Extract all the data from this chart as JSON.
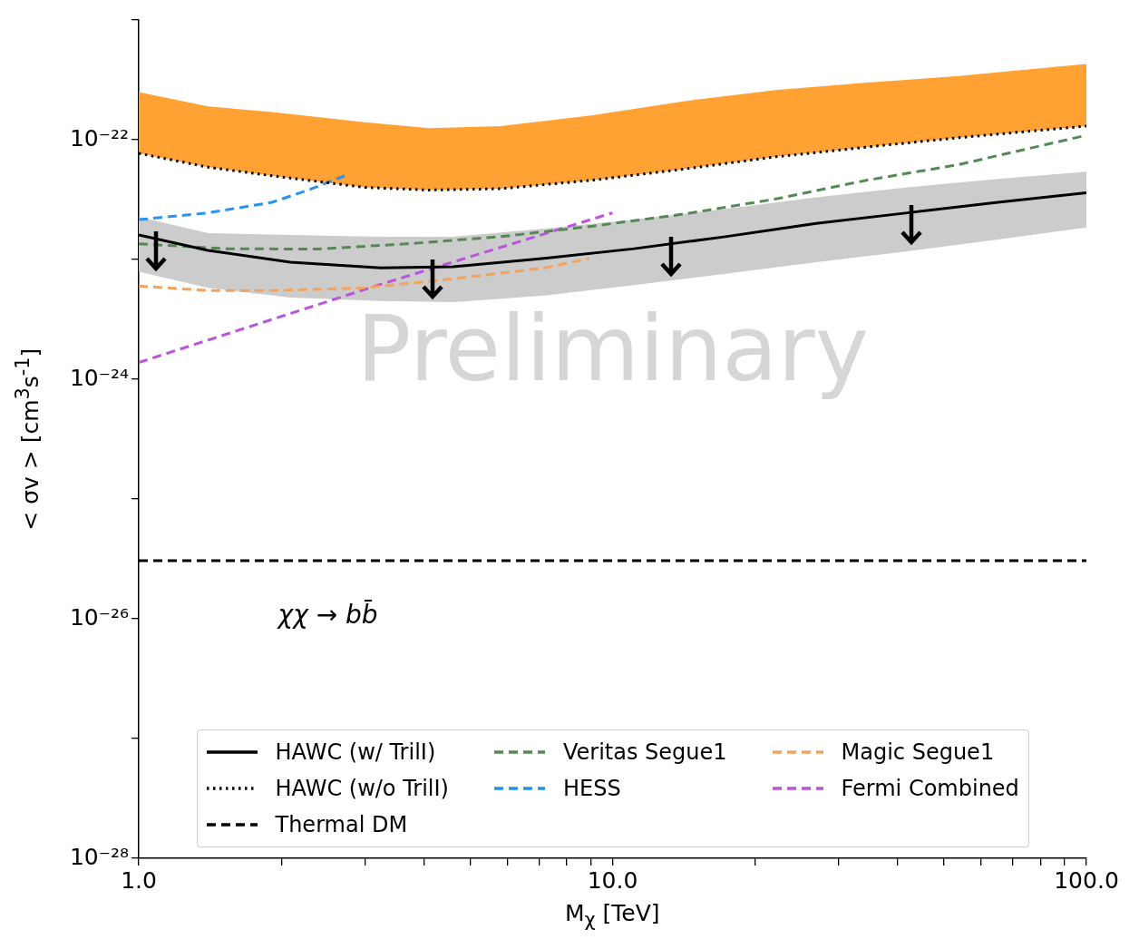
{
  "chart_data": {
    "type": "line",
    "xlabel": "M$_{χ}$ [TeV]",
    "ylabel": "< σv >  [cm$^{3}$s$^{-1}$]",
    "log": "xy",
    "grid": false,
    "legend": "bottom",
    "xlim": [
      1,
      100
    ],
    "ylim": [
      1e-28,
      1e-21
    ],
    "xticks": [
      {
        "value": 1,
        "label": "1.0"
      },
      {
        "value": 2,
        "label": null
      },
      {
        "value": 3,
        "label": null
      },
      {
        "value": 4,
        "label": null
      },
      {
        "value": 5,
        "label": null
      },
      {
        "value": 6,
        "label": null
      },
      {
        "value": 7,
        "label": null
      },
      {
        "value": 8,
        "label": null
      },
      {
        "value": 9,
        "label": null
      },
      {
        "value": 10,
        "label": "10.0"
      },
      {
        "value": 20,
        "label": null
      },
      {
        "value": 30,
        "label": null
      },
      {
        "value": 40,
        "label": null
      },
      {
        "value": 50,
        "label": null
      },
      {
        "value": 60,
        "label": null
      },
      {
        "value": 70,
        "label": null
      },
      {
        "value": 80,
        "label": null
      },
      {
        "value": 90,
        "label": null
      },
      {
        "value": 100,
        "label": "100.0"
      }
    ],
    "yticks": [
      {
        "value": 1e-28,
        "label": "10⁻²⁸"
      },
      {
        "value": 1e-27,
        "label": null
      },
      {
        "value": 1e-26,
        "label": "10⁻²⁶"
      },
      {
        "value": 1e-25,
        "label": null
      },
      {
        "value": 1e-24,
        "label": "10⁻²⁴"
      },
      {
        "value": 1e-23,
        "label": null
      },
      {
        "value": 1e-22,
        "label": "10⁻²²"
      },
      {
        "value": 1e-21,
        "label": null
      }
    ],
    "annotations": [
      "χχ → bb̄",
      "Preliminary"
    ],
    "series": [
      {
        "name": "HAWC (w/ TrilI)",
        "color": "#000000",
        "line_style": "solid",
        "x": [
          1,
          1.4,
          2.09,
          3.24,
          4.61,
          7.18,
          11.1,
          17.3,
          26.9,
          41.9,
          65,
          100
        ],
        "values": [
          1.6e-23,
          1.19e-23,
          9.5e-24,
          8.5e-24,
          8.7e-24,
          1.02e-23,
          1.23e-23,
          1.55e-23,
          2e-23,
          2.45e-23,
          3e-23,
          3.6e-23
        ],
        "lower": [
          7.9e-24,
          5.8e-24,
          4.8e-24,
          4.5e-24,
          4.4e-24,
          5e-24,
          6.1e-24,
          7.6e-24,
          9.5e-24,
          1.17e-23,
          1.47e-23,
          1.85e-23
        ],
        "upper": [
          2.27e-23,
          1.66e-23,
          1.6e-23,
          1.55e-23,
          1.55e-23,
          1.81e-23,
          2.15e-23,
          2.65e-23,
          3.3e-23,
          4e-23,
          4.7e-23,
          5.4e-23
        ]
      },
      {
        "name": "Veritas Segue1",
        "color": "#558855",
        "line_style": "dashed",
        "x": [
          1,
          1.53,
          2.37,
          3.67,
          5.8,
          9.1,
          14.2,
          22.1,
          34.5,
          53.8,
          100
        ],
        "values": [
          1.35e-23,
          1.23e-23,
          1.22e-23,
          1.35e-23,
          1.55e-23,
          1.9e-23,
          2.4e-23,
          3.2e-23,
          4.6e-23,
          6.2e-23,
          1.09e-22
        ]
      },
      {
        "name": "Magic Segue1",
        "color": "#f5a25a",
        "line_style": "dashed",
        "x": [
          1,
          1.4,
          1.91,
          3.0,
          4.61,
          7.18,
          8.93
        ],
        "values": [
          6e-24,
          5.5e-24,
          5.5e-24,
          5.8e-24,
          6.9e-24,
          8.5e-24,
          1.02e-23
        ]
      },
      {
        "name": "HAWC (w/o TrilI)",
        "color": "#000000",
        "line_style": "dotted",
        "x": [
          1,
          1.4,
          1.91,
          3.0,
          4.1,
          5.8,
          9.1,
          14.2,
          22.1,
          34.5,
          53.8,
          100
        ],
        "values": [
          7.7e-23,
          5.9e-23,
          5e-23,
          4e-23,
          3.8e-23,
          3.9e-23,
          4.6e-23,
          5.7e-23,
          7.2e-23,
          8.7e-23,
          1.04e-22,
          1.3e-22
        ],
        "lower": [
          7.7e-23,
          5.9e-23,
          5e-23,
          4e-23,
          3.8e-23,
          3.9e-23,
          4.6e-23,
          5.7e-23,
          7.2e-23,
          8.7e-23,
          1.04e-22,
          1.3e-22
        ],
        "upper": [
          2.5e-22,
          1.9e-22,
          1.7e-22,
          1.4e-22,
          1.25e-22,
          1.3e-22,
          1.6e-22,
          2.1e-22,
          2.6e-22,
          3e-22,
          3.4e-22,
          4.3e-22
        ]
      },
      {
        "name": "HESS",
        "color": "#2a93ee",
        "line_style": "dashed",
        "x": [
          1,
          1.4,
          1.91,
          2.28,
          2.72
        ],
        "values": [
          2.15e-23,
          2.45e-23,
          3e-23,
          3.8e-23,
          5e-23
        ]
      },
      {
        "name": "Fermi Combined",
        "color": "#bb55dd",
        "line_style": "dashed",
        "x": [
          1,
          3.24,
          10
        ],
        "values": [
          1.38e-24,
          6.2e-24,
          2.45e-23
        ]
      },
      {
        "name": "Thermal DM",
        "color": "#000000",
        "line_style": "dashed",
        "x": [
          1,
          100
        ],
        "values": [
          3.05e-26,
          3.05e-26
        ]
      }
    ]
  }
}
